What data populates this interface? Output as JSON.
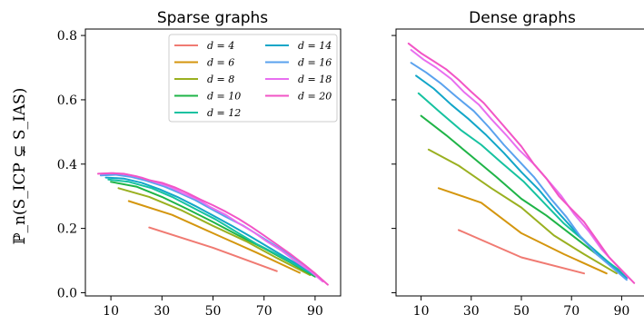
{
  "ylabel": "ℙ_n(S_ICP ⊊ S_IAS)",
  "colors": {
    "d=4": "#f07a72",
    "d=6": "#d4960e",
    "d=8": "#9ab020",
    "d=10": "#1fb447",
    "d=12": "#16c2a0",
    "d=14": "#12a6c8",
    "d=16": "#5aa2ee",
    "d=18": "#e86ff0",
    "d=20": "#f255c6"
  },
  "chart_data": [
    {
      "type": "line",
      "title": "Sparse graphs",
      "xlim": [
        0,
        100
      ],
      "ylim": [
        -0.01,
        0.82
      ],
      "xticks": [
        10,
        30,
        50,
        70,
        90
      ],
      "yticks": [
        0.0,
        0.2,
        0.4,
        0.6,
        0.8
      ],
      "ytick_labels": [
        "0.0",
        "0.2",
        "0.4",
        "0.6",
        "0.8"
      ],
      "grid": false,
      "legend": "top-right",
      "series": [
        {
          "name": "d = 4",
          "key": "d=4",
          "x": [
            25,
            50,
            75
          ],
          "y": [
            0.203,
            0.14,
            0.067
          ]
        },
        {
          "name": "d = 6",
          "key": "d=6",
          "x": [
            17,
            34,
            50,
            67,
            84
          ],
          "y": [
            0.285,
            0.242,
            0.185,
            0.125,
            0.062
          ]
        },
        {
          "name": "d = 8",
          "key": "d=8",
          "x": [
            13,
            25,
            38,
            50,
            63,
            75,
            88
          ],
          "y": [
            0.325,
            0.298,
            0.255,
            0.208,
            0.16,
            0.108,
            0.055
          ]
        },
        {
          "name": "d = 10",
          "key": "d=10",
          "x": [
            10,
            20,
            30,
            40,
            50,
            60,
            70,
            80,
            90
          ],
          "y": [
            0.345,
            0.33,
            0.298,
            0.26,
            0.22,
            0.178,
            0.138,
            0.095,
            0.05
          ]
        },
        {
          "name": "d = 12",
          "key": "d=12",
          "x": [
            9,
            17,
            26,
            34,
            42,
            51,
            59,
            67,
            76,
            84,
            92
          ],
          "y": [
            0.352,
            0.345,
            0.325,
            0.298,
            0.265,
            0.228,
            0.19,
            0.152,
            0.115,
            0.08,
            0.045
          ]
        },
        {
          "name": "d = 14",
          "key": "d=14",
          "x": [
            8,
            15,
            22,
            29,
            36,
            43,
            50,
            57,
            64,
            71,
            78,
            85,
            92
          ],
          "y": [
            0.358,
            0.355,
            0.342,
            0.322,
            0.298,
            0.27,
            0.24,
            0.21,
            0.178,
            0.145,
            0.112,
            0.08,
            0.045
          ]
        },
        {
          "name": "d = 16",
          "key": "d=16",
          "x": [
            6,
            12,
            18,
            24,
            31,
            37,
            43,
            49,
            55,
            62,
            68,
            74,
            80,
            86,
            92
          ],
          "y": [
            0.365,
            0.367,
            0.36,
            0.348,
            0.33,
            0.31,
            0.288,
            0.262,
            0.236,
            0.208,
            0.178,
            0.148,
            0.118,
            0.085,
            0.045
          ]
        },
        {
          "name": "d = 18",
          "key": "d=18",
          "x": [
            6,
            11,
            16,
            22,
            27,
            33,
            38,
            44,
            49,
            55,
            60,
            66,
            71,
            77,
            82,
            88,
            93
          ],
          "y": [
            0.37,
            0.372,
            0.368,
            0.358,
            0.345,
            0.33,
            0.31,
            0.29,
            0.266,
            0.242,
            0.216,
            0.188,
            0.16,
            0.13,
            0.1,
            0.068,
            0.035
          ]
        },
        {
          "name": "d = 20",
          "key": "d=20",
          "x": [
            5,
            10,
            15,
            20,
            25,
            30,
            35,
            40,
            45,
            50,
            55,
            60,
            65,
            70,
            75,
            80,
            85,
            90,
            95
          ],
          "y": [
            0.37,
            0.372,
            0.37,
            0.362,
            0.35,
            0.342,
            0.328,
            0.31,
            0.29,
            0.272,
            0.252,
            0.23,
            0.205,
            0.178,
            0.15,
            0.122,
            0.092,
            0.06,
            0.025
          ]
        }
      ]
    },
    {
      "type": "line",
      "title": "Dense graphs",
      "xlim": [
        0,
        100
      ],
      "ylim": [
        -0.01,
        0.82
      ],
      "xticks": [
        10,
        30,
        50,
        70,
        90
      ],
      "yticks": [
        0.0,
        0.2,
        0.4,
        0.6,
        0.8
      ],
      "ytick_labels": [],
      "grid": false,
      "series": [
        {
          "name": "d = 4",
          "key": "d=4",
          "x": [
            25,
            50,
            75
          ],
          "y": [
            0.195,
            0.11,
            0.06
          ]
        },
        {
          "name": "d = 6",
          "key": "d=6",
          "x": [
            17,
            34,
            50,
            67,
            84
          ],
          "y": [
            0.325,
            0.28,
            0.185,
            0.12,
            0.06
          ]
        },
        {
          "name": "d = 8",
          "key": "d=8",
          "x": [
            13,
            25,
            38,
            50,
            63,
            75,
            88
          ],
          "y": [
            0.445,
            0.395,
            0.325,
            0.265,
            0.178,
            0.12,
            0.06
          ]
        },
        {
          "name": "d = 10",
          "key": "d=10",
          "x": [
            10,
            20,
            30,
            40,
            50,
            60,
            70,
            80,
            90
          ],
          "y": [
            0.55,
            0.49,
            0.425,
            0.36,
            0.292,
            0.24,
            0.18,
            0.12,
            0.065
          ]
        },
        {
          "name": "d = 12",
          "key": "d=12",
          "x": [
            9,
            17,
            26,
            34,
            42,
            51,
            59,
            67,
            76,
            84,
            92
          ],
          "y": [
            0.62,
            0.565,
            0.505,
            0.46,
            0.405,
            0.345,
            0.28,
            0.215,
            0.155,
            0.1,
            0.05
          ]
        },
        {
          "name": "d = 14",
          "key": "d=14",
          "x": [
            8,
            15,
            22,
            29,
            36,
            43,
            50,
            57,
            64,
            71,
            78,
            85,
            92
          ],
          "y": [
            0.675,
            0.635,
            0.585,
            0.54,
            0.49,
            0.435,
            0.375,
            0.32,
            0.255,
            0.195,
            0.14,
            0.09,
            0.045
          ]
        },
        {
          "name": "d = 16",
          "key": "d=16",
          "x": [
            6,
            12,
            18,
            24,
            31,
            37,
            43,
            49,
            55,
            62,
            68,
            74,
            80,
            86,
            92
          ],
          "y": [
            0.715,
            0.685,
            0.65,
            0.61,
            0.565,
            0.515,
            0.46,
            0.41,
            0.36,
            0.29,
            0.235,
            0.17,
            0.12,
            0.08,
            0.04
          ]
        },
        {
          "name": "d = 18",
          "key": "d=18",
          "x": [
            6,
            11,
            16,
            22,
            27,
            33,
            38,
            44,
            49,
            55,
            60,
            66,
            71,
            77,
            82,
            88,
            93
          ],
          "y": [
            0.755,
            0.725,
            0.7,
            0.665,
            0.625,
            0.585,
            0.54,
            0.49,
            0.445,
            0.4,
            0.355,
            0.3,
            0.245,
            0.19,
            0.135,
            0.085,
            0.045
          ]
        },
        {
          "name": "d = 20",
          "key": "d=20",
          "x": [
            5,
            10,
            15,
            20,
            25,
            30,
            35,
            40,
            45,
            50,
            55,
            60,
            65,
            70,
            75,
            80,
            85,
            90,
            95
          ],
          "y": [
            0.775,
            0.745,
            0.72,
            0.695,
            0.662,
            0.625,
            0.59,
            0.545,
            0.5,
            0.455,
            0.4,
            0.355,
            0.3,
            0.26,
            0.22,
            0.165,
            0.11,
            0.07,
            0.03
          ]
        }
      ]
    }
  ]
}
